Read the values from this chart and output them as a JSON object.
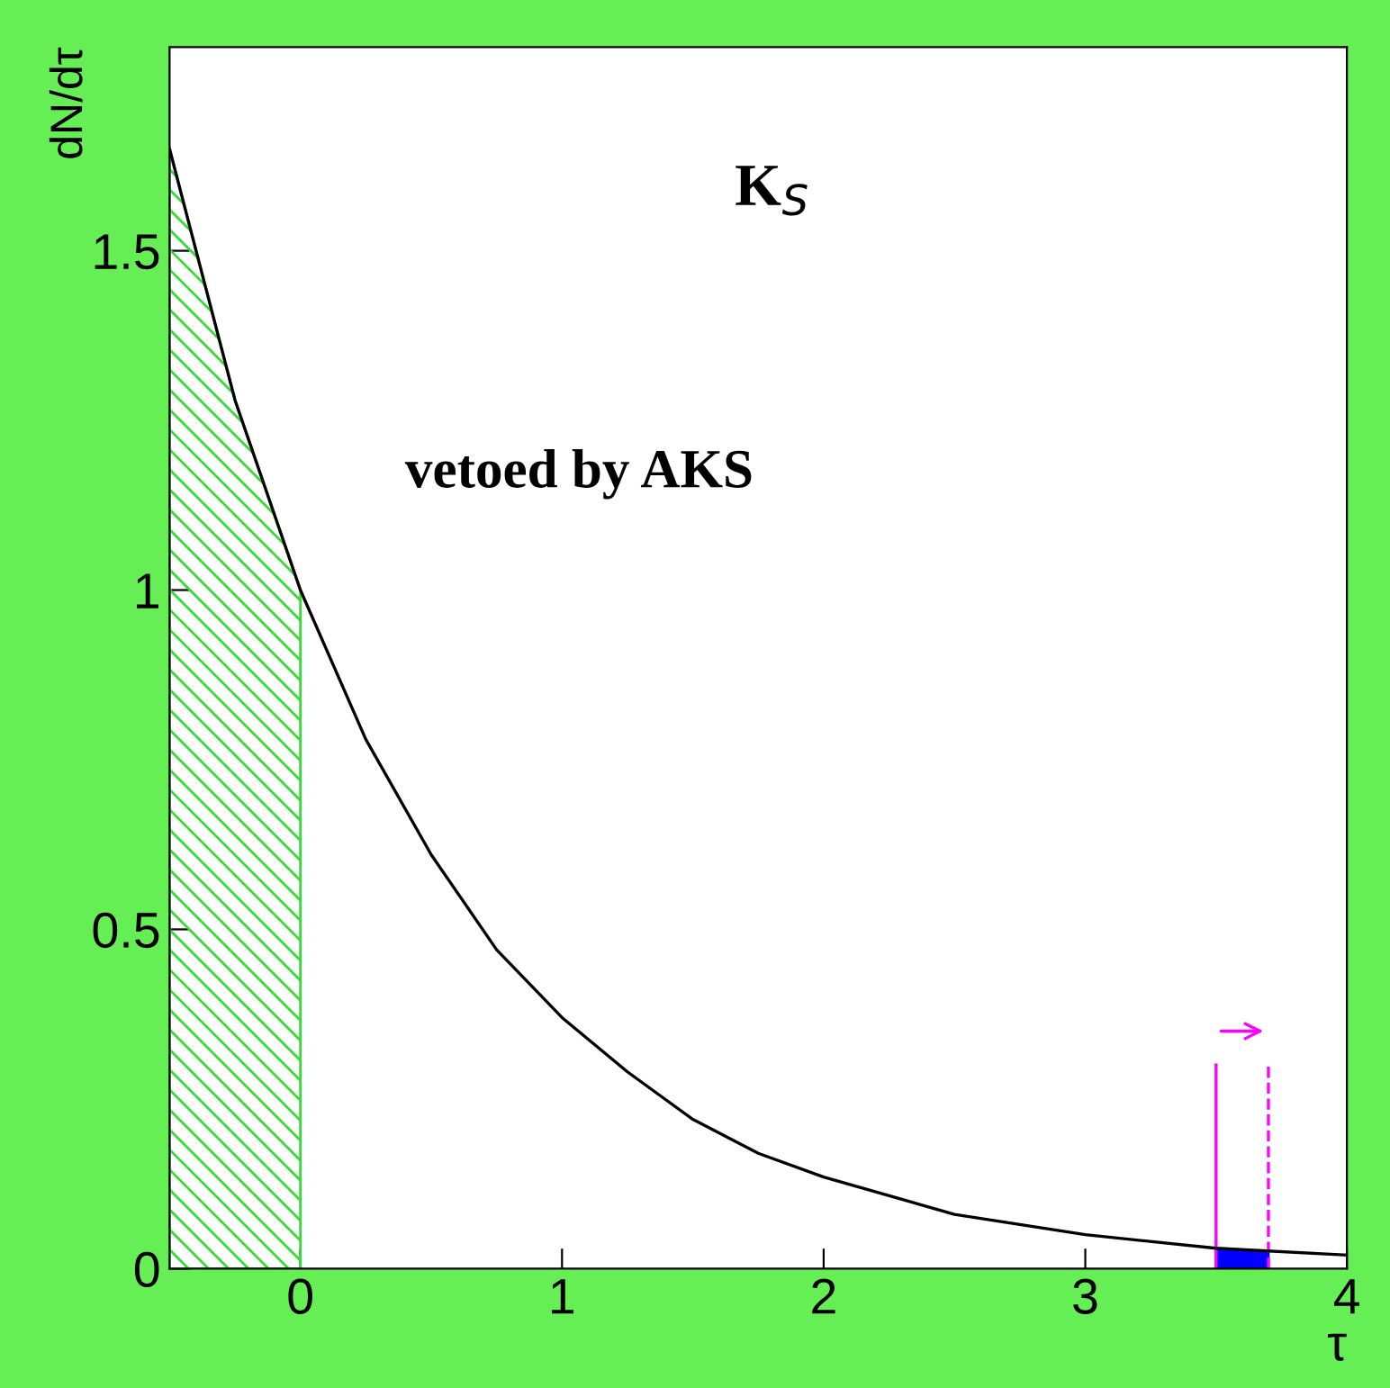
{
  "chart_data": {
    "type": "line",
    "xlabel": "τ",
    "ylabel": "dN/dτ",
    "x": [
      -0.5,
      -0.25,
      0,
      0.25,
      0.5,
      0.75,
      1,
      1.25,
      1.5,
      1.75,
      2,
      2.5,
      3,
      3.5,
      4
    ],
    "series": [
      {
        "color": "#000000",
        "values": [
          1.65,
          1.28,
          1.0,
          0.78,
          0.61,
          0.47,
          0.37,
          0.29,
          0.22,
          0.17,
          0.135,
          0.08,
          0.05,
          0.03,
          0.02
        ]
      },
      {
        "type": "area",
        "color": "#33dd33",
        "x": [
          -0.5,
          -0.25,
          0
        ],
        "values": [
          1.65,
          1.28,
          1.0
        ]
      },
      {
        "type": "area",
        "color": "#0000ff",
        "x": [
          3.5,
          3.7
        ],
        "values": [
          0.03,
          0.025
        ]
      }
    ],
    "xlim": [
      -0.5,
      4
    ],
    "ylim": [
      0,
      1.8
    ],
    "xticks": [
      0,
      1,
      2,
      3,
      4
    ],
    "yticks": [
      0,
      0.5,
      1,
      1.5
    ],
    "ref_lines": [
      {
        "axis": "x",
        "value": 3.5,
        "color": "#ff00ff",
        "line_style": "solid"
      },
      {
        "axis": "x",
        "value": 3.7,
        "color": "#ff00ff",
        "line_style": "dashed"
      }
    ],
    "annotations": [
      "K$_{S}$",
      "vetoed by AKS"
    ],
    "grid": false,
    "marker": "none",
    "line_style": "solid"
  }
}
